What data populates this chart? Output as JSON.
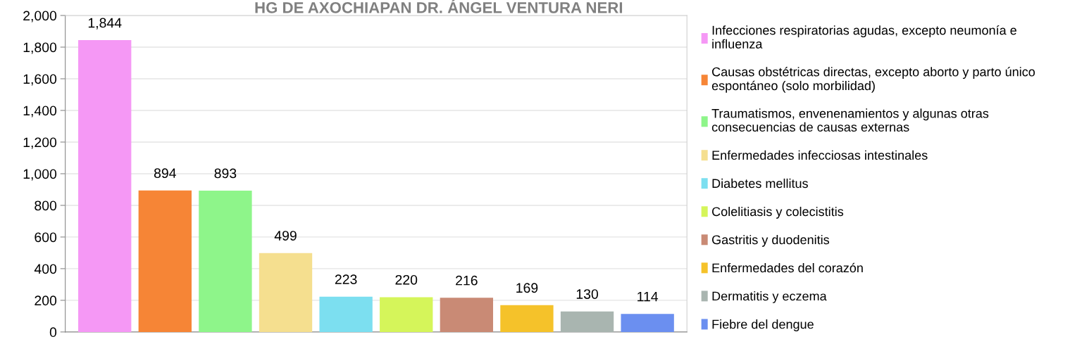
{
  "chart_data": {
    "type": "bar",
    "title": "HG DE AXOCHIAPAN DR. ÁNGEL VENTURA NERI",
    "categories": [
      null
    ],
    "series": [
      {
        "name": "Infecciones respiratorias agudas, excepto neumonía e influenza",
        "color": "#f598f5",
        "values": [
          1844
        ],
        "value_labels": [
          "1,844"
        ]
      },
      {
        "name": "Causas obstétricas directas, excepto aborto y parto único espontáneo (solo morbilidad)",
        "color": "#f68536",
        "values": [
          894
        ],
        "value_labels": [
          "894"
        ]
      },
      {
        "name": "Traumatismos, envenenamientos y algunas otras consecuencias de causas externas",
        "color": "#8ef58a",
        "values": [
          893
        ],
        "value_labels": [
          "893"
        ]
      },
      {
        "name": "Enfermedades infecciosas intestinales",
        "color": "#f5df8f",
        "values": [
          499
        ],
        "value_labels": [
          "499"
        ]
      },
      {
        "name": "Diabetes mellitus",
        "color": "#7cdff0",
        "values": [
          223
        ],
        "value_labels": [
          "223"
        ]
      },
      {
        "name": "Colelitiasis y colecistitis",
        "color": "#d5f55a",
        "values": [
          220
        ],
        "value_labels": [
          "220"
        ]
      },
      {
        "name": "Gastritis y duodenitis",
        "color": "#c98a75",
        "values": [
          216
        ],
        "value_labels": [
          "216"
        ]
      },
      {
        "name": "Enfermedades del corazón",
        "color": "#f5c22a",
        "values": [
          169
        ],
        "value_labels": [
          "169"
        ]
      },
      {
        "name": "Dermatitis y eczema",
        "color": "#a9b5b0",
        "values": [
          130
        ],
        "value_labels": [
          "130"
        ]
      },
      {
        "name": "Fiebre del dengue",
        "color": "#6b8ff0",
        "values": [
          114
        ],
        "value_labels": [
          "114"
        ]
      }
    ],
    "ylim": [
      0,
      2000
    ],
    "yticks": [
      {
        "value": 0,
        "label": "0"
      },
      {
        "value": 200,
        "label": "200"
      },
      {
        "value": 400,
        "label": "400"
      },
      {
        "value": 600,
        "label": "600"
      },
      {
        "value": 800,
        "label": "800"
      },
      {
        "value": 1000,
        "label": "1,000"
      },
      {
        "value": 1200,
        "label": "1,200"
      },
      {
        "value": 1400,
        "label": "1,400"
      },
      {
        "value": 1600,
        "label": "1,600"
      },
      {
        "value": 1800,
        "label": "1,800"
      },
      {
        "value": 2000,
        "label": "2,000"
      }
    ],
    "grid": "y",
    "legend": "right",
    "tick_labels": "y"
  }
}
